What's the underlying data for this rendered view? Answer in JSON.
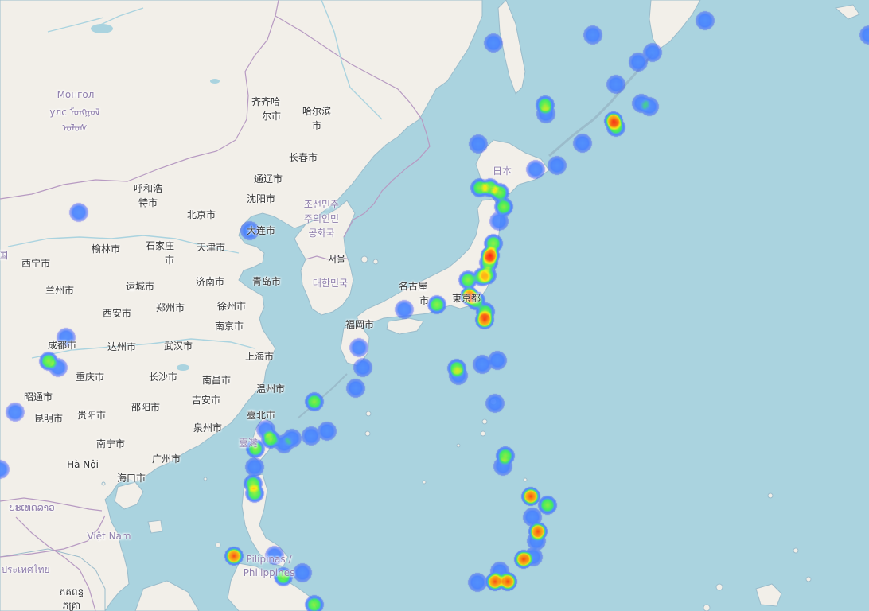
{
  "map": {
    "colors": {
      "sea": "#aad3df",
      "land": "#f2efe9",
      "border": "#b79ac2"
    },
    "layers": [
      "openstreetmap-base",
      "heatmap-overlay"
    ]
  },
  "labels": {
    "mongolia_1": "Монгол",
    "mongolia_2": "улс ᠮᠣᠩᠭᠣᠯ",
    "mongolia_3": "ᠤᠯᠤᠰ",
    "qiqihar_1": "齐齐哈",
    "qiqihar_2": "尔市",
    "harbin_1": "哈尔滨",
    "harbin_2": "市",
    "changchun": "长春市",
    "tonghua": "通辽市",
    "shenyang": "沈阳市",
    "hohhot_1": "呼和浩",
    "hohhot_2": "特市",
    "beijing": "北京市",
    "dalian": "大连市",
    "nk_1": "조선민주",
    "nk_2": "주의인민",
    "nk_3": "공화국",
    "japan": "日本",
    "yulin": "榆林市",
    "shijiazhuang_1": "石家庄",
    "shijiazhuang_2": "市",
    "tianjin": "天津市",
    "seoul": "서울",
    "xining": "西宁市",
    "jinan": "济南市",
    "qingdao": "青岛市",
    "sk": "대한민국",
    "nagoya_1": "名古屋",
    "nagoya_2": "市",
    "tokyo": "東京都",
    "lanzhou": "兰州市",
    "yuncheng": "运城市",
    "zhengzhou": "郑州市",
    "xuzhou": "徐州市",
    "xian": "西安市",
    "nanjing": "南京市",
    "fukuoka": "福岡市",
    "chengdu": "成都市",
    "dazhou": "达州市",
    "wuhan": "武汉市",
    "shanghai": "上海市",
    "chongqing": "重庆市",
    "changsha": "长沙市",
    "nanchang": "南昌市",
    "wenzhou": "温州市",
    "zhaotong": "昭通市",
    "jian": "吉安市",
    "kunming": "昆明市",
    "guiyang": "贵阳市",
    "shaoyang": "邵阳市",
    "taipei": "臺北市",
    "quanzhou": "泉州市",
    "taiwan": "臺灣",
    "nanning": "南宁市",
    "guangzhou": "广州市",
    "hanoi": "Hà Nội",
    "haikou": "海口市",
    "laos": "ປະເທດລາວ",
    "vietnam": "Việt Nam",
    "ph_1": "Pilipinas /",
    "ph_2": "Philippines",
    "thailand": "ประเทศไทย",
    "cambodia_1": "ភគពន្ធ",
    "cambodia_2": "ភគ្រា",
    "edge": "国"
  },
  "heat_points": [
    [
      620,
      54,
      1
    ],
    [
      745,
      44,
      1
    ],
    [
      886,
      26,
      1
    ],
    [
      820,
      66,
      1
    ],
    [
      802,
      78,
      1
    ],
    [
      774,
      106,
      1
    ],
    [
      685,
      132,
      2
    ],
    [
      686,
      143,
      1
    ],
    [
      806,
      130,
      1
    ],
    [
      816,
      134,
      1
    ],
    [
      771,
      152,
      3
    ],
    [
      774,
      160,
      2
    ],
    [
      601,
      181,
      1
    ],
    [
      732,
      180,
      1
    ],
    [
      700,
      208,
      1
    ],
    [
      673,
      213,
      1
    ],
    [
      603,
      236,
      2
    ],
    [
      616,
      236,
      2
    ],
    [
      628,
      242,
      2
    ],
    [
      633,
      260,
      2
    ],
    [
      627,
      278,
      1
    ],
    [
      620,
      306,
      2
    ],
    [
      616,
      321,
      5
    ],
    [
      614,
      330,
      2
    ],
    [
      612,
      346,
      2
    ],
    [
      606,
      348,
      2
    ],
    [
      588,
      352,
      2
    ],
    [
      590,
      372,
      3
    ],
    [
      598,
      378,
      2
    ],
    [
      549,
      383,
      2
    ],
    [
      508,
      389,
      1
    ],
    [
      610,
      392,
      2
    ],
    [
      609,
      402,
      3
    ],
    [
      451,
      437,
      1
    ],
    [
      456,
      462,
      1
    ],
    [
      574,
      463,
      2
    ],
    [
      576,
      472,
      1
    ],
    [
      606,
      458,
      1
    ],
    [
      625,
      453,
      1
    ],
    [
      447,
      488,
      1
    ],
    [
      395,
      505,
      2
    ],
    [
      622,
      507,
      1
    ],
    [
      411,
      542,
      1
    ],
    [
      391,
      548,
      1
    ],
    [
      367,
      551,
      1
    ],
    [
      357,
      558,
      1
    ],
    [
      340,
      552,
      2
    ],
    [
      334,
      540,
      1
    ],
    [
      321,
      564,
      2
    ],
    [
      320,
      587,
      1
    ],
    [
      318,
      608,
      2
    ],
    [
      320,
      620,
      2
    ],
    [
      635,
      573,
      2
    ],
    [
      632,
      586,
      1
    ],
    [
      667,
      624,
      3
    ],
    [
      688,
      635,
      2
    ],
    [
      669,
      650,
      1
    ],
    [
      676,
      668,
      3
    ],
    [
      674,
      680,
      1
    ],
    [
      658,
      703,
      3
    ],
    [
      670,
      700,
      1
    ],
    [
      294,
      699,
      3
    ],
    [
      345,
      698,
      1
    ],
    [
      356,
      725,
      2
    ],
    [
      380,
      720,
      1
    ],
    [
      622,
      731,
      3
    ],
    [
      638,
      731,
      3
    ],
    [
      600,
      732,
      1
    ],
    [
      628,
      718,
      1
    ],
    [
      395,
      760,
      2
    ],
    [
      99,
      267,
      1
    ],
    [
      83,
      424,
      1
    ],
    [
      61,
      454,
      2
    ],
    [
      73,
      462,
      1
    ],
    [
      19,
      518,
      1
    ],
    [
      314,
      290,
      1
    ],
    [
      0,
      590,
      1
    ],
    [
      1092,
      44,
      1
    ]
  ]
}
